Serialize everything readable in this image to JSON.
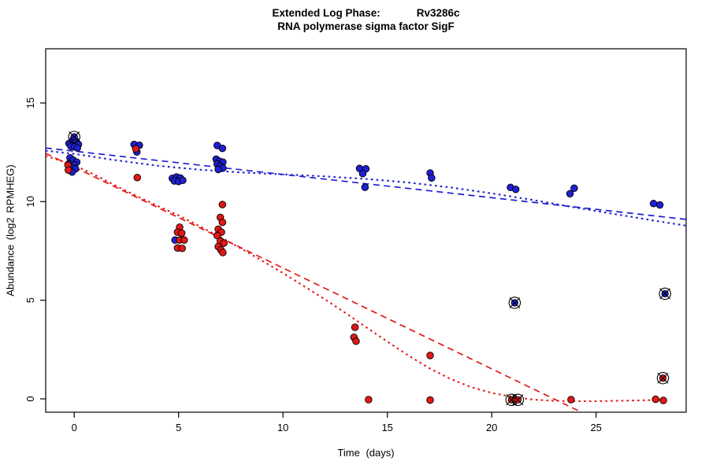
{
  "title": {
    "prefix": "Extended Log Phase:",
    "gene": "Rv3286c",
    "subtitle": "RNA polymerase sigma factor SigF"
  },
  "chart_data": {
    "type": "scatter",
    "xlabel": "Time (days)",
    "ylabel": "Abundance (log2 RPMHEG)",
    "x_ticks": [
      0,
      5,
      10,
      15,
      20,
      25
    ],
    "x_tick_labels": [
      "0",
      "5",
      "10",
      "15",
      "20",
      "25"
    ],
    "y_ticks": [
      0,
      5,
      10,
      15
    ],
    "y_tick_labels": [
      "0",
      "5",
      "10",
      "15"
    ],
    "xlim": [
      -1.37,
      29.32
    ],
    "ylim": [
      -0.7,
      18.4
    ],
    "grid": false,
    "legend": "none",
    "colors": {
      "blue": "#1f1fd4",
      "red": "#e41717",
      "axis": "#000000"
    },
    "series": [
      {
        "name": "blue-points",
        "color": "blue",
        "marker": "dot",
        "points": [
          [
            -0.25,
            12.95
          ],
          [
            -0.05,
            13.15
          ],
          [
            0.1,
            13.05
          ],
          [
            0.2,
            12.9
          ],
          [
            -0.15,
            12.8
          ],
          [
            0.02,
            12.78
          ],
          [
            0.15,
            12.72
          ],
          [
            -0.2,
            12.22
          ],
          [
            -0.05,
            12.1
          ],
          [
            0.12,
            12.0
          ],
          [
            -0.25,
            11.92
          ],
          [
            0.0,
            11.86
          ],
          [
            -0.15,
            11.74
          ],
          [
            0.06,
            11.66
          ],
          [
            -0.1,
            11.5
          ],
          [
            2.87,
            12.9
          ],
          [
            3.12,
            12.86
          ],
          [
            3.0,
            12.52
          ],
          [
            4.7,
            11.18
          ],
          [
            4.9,
            11.25
          ],
          [
            5.08,
            11.2
          ],
          [
            4.8,
            11.05
          ],
          [
            5.0,
            11.02
          ],
          [
            5.2,
            11.08
          ],
          [
            4.83,
            8.05
          ],
          [
            6.85,
            12.85
          ],
          [
            7.1,
            12.7
          ],
          [
            6.8,
            12.15
          ],
          [
            6.95,
            12.05
          ],
          [
            7.12,
            12.0
          ],
          [
            6.85,
            11.9
          ],
          [
            7.0,
            11.8
          ],
          [
            7.12,
            11.7
          ],
          [
            6.9,
            11.63
          ],
          [
            13.67,
            11.68
          ],
          [
            13.97,
            11.66
          ],
          [
            13.82,
            11.42
          ],
          [
            13.93,
            10.73
          ],
          [
            17.05,
            11.45
          ],
          [
            17.12,
            11.2
          ],
          [
            20.9,
            10.72
          ],
          [
            21.15,
            10.62
          ],
          [
            23.75,
            10.4
          ],
          [
            23.95,
            10.68
          ],
          [
            27.75,
            9.9
          ],
          [
            28.05,
            9.83
          ]
        ]
      },
      {
        "name": "red-points",
        "color": "red",
        "marker": "dot",
        "points": [
          [
            -0.3,
            11.85
          ],
          [
            -0.28,
            11.6
          ],
          [
            2.95,
            12.68
          ],
          [
            3.02,
            11.22
          ],
          [
            5.05,
            8.7
          ],
          [
            4.95,
            8.45
          ],
          [
            5.15,
            8.4
          ],
          [
            5.05,
            8.05
          ],
          [
            5.27,
            8.05
          ],
          [
            4.95,
            7.65
          ],
          [
            5.17,
            7.63
          ],
          [
            7.1,
            9.85
          ],
          [
            7.0,
            9.2
          ],
          [
            7.1,
            8.95
          ],
          [
            6.9,
            8.6
          ],
          [
            7.05,
            8.45
          ],
          [
            6.85,
            8.28
          ],
          [
            7.0,
            8.0
          ],
          [
            7.17,
            7.9
          ],
          [
            6.9,
            7.72
          ],
          [
            7.03,
            7.55
          ],
          [
            7.12,
            7.42
          ],
          [
            13.45,
            3.63
          ],
          [
            13.4,
            3.12
          ],
          [
            13.5,
            2.92
          ],
          [
            14.1,
            -0.04
          ],
          [
            17.05,
            2.2
          ],
          [
            17.05,
            -0.06
          ],
          [
            23.8,
            -0.04
          ],
          [
            27.85,
            -0.02
          ],
          [
            28.22,
            -0.08
          ]
        ]
      },
      {
        "name": "blue-circled-points",
        "color": "blue",
        "marker": "circle-x",
        "points": [
          [
            0.0,
            13.28
          ],
          [
            21.1,
            4.87
          ],
          [
            28.3,
            5.33
          ]
        ]
      },
      {
        "name": "red-circled-points",
        "color": "red",
        "marker": "circle-x",
        "points": [
          [
            20.95,
            -0.05
          ],
          [
            21.25,
            -0.05
          ],
          [
            28.2,
            1.05
          ]
        ]
      }
    ],
    "lines": [
      {
        "name": "blue-linear-fit",
        "color": "blue",
        "dash": "long",
        "points": [
          [
            -1.37,
            12.72
          ],
          [
            29.32,
            9.1
          ]
        ]
      },
      {
        "name": "blue-loess-fit",
        "color": "blue",
        "dash": "short",
        "points": [
          [
            -1.37,
            12.58
          ],
          [
            0,
            12.42
          ],
          [
            2,
            12.1
          ],
          [
            4,
            11.82
          ],
          [
            6,
            11.62
          ],
          [
            8,
            11.48
          ],
          [
            10,
            11.38
          ],
          [
            12,
            11.28
          ],
          [
            14,
            11.15
          ],
          [
            16,
            10.97
          ],
          [
            18,
            10.72
          ],
          [
            20,
            10.42
          ],
          [
            22,
            10.08
          ],
          [
            24,
            9.7
          ],
          [
            26,
            9.35
          ],
          [
            28,
            9.0
          ],
          [
            29.32,
            8.78
          ]
        ]
      },
      {
        "name": "red-linear-fit",
        "color": "red",
        "dash": "long",
        "points": [
          [
            -1.37,
            12.45
          ],
          [
            24.4,
            -0.73
          ]
        ]
      },
      {
        "name": "red-loess-fit",
        "color": "red",
        "dash": "short",
        "points": [
          [
            -1.37,
            12.32
          ],
          [
            0,
            11.85
          ],
          [
            1,
            11.35
          ],
          [
            2,
            10.8
          ],
          [
            3,
            10.28
          ],
          [
            4,
            9.78
          ],
          [
            5,
            9.3
          ],
          [
            6,
            8.76
          ],
          [
            7,
            8.2
          ],
          [
            8,
            7.62
          ],
          [
            9,
            7.0
          ],
          [
            10,
            6.38
          ],
          [
            11,
            5.72
          ],
          [
            12,
            5.05
          ],
          [
            13,
            4.35
          ],
          [
            14,
            3.62
          ],
          [
            15,
            2.9
          ],
          [
            16,
            2.2
          ],
          [
            17,
            1.56
          ],
          [
            18,
            1.02
          ],
          [
            19,
            0.6
          ],
          [
            20,
            0.3
          ],
          [
            21,
            0.1
          ],
          [
            22,
            -0.04
          ],
          [
            23,
            -0.1
          ],
          [
            24,
            -0.12
          ],
          [
            25,
            -0.12
          ],
          [
            26,
            -0.1
          ],
          [
            27,
            -0.08
          ],
          [
            28,
            -0.05
          ],
          [
            28.4,
            -0.04
          ]
        ]
      }
    ]
  }
}
